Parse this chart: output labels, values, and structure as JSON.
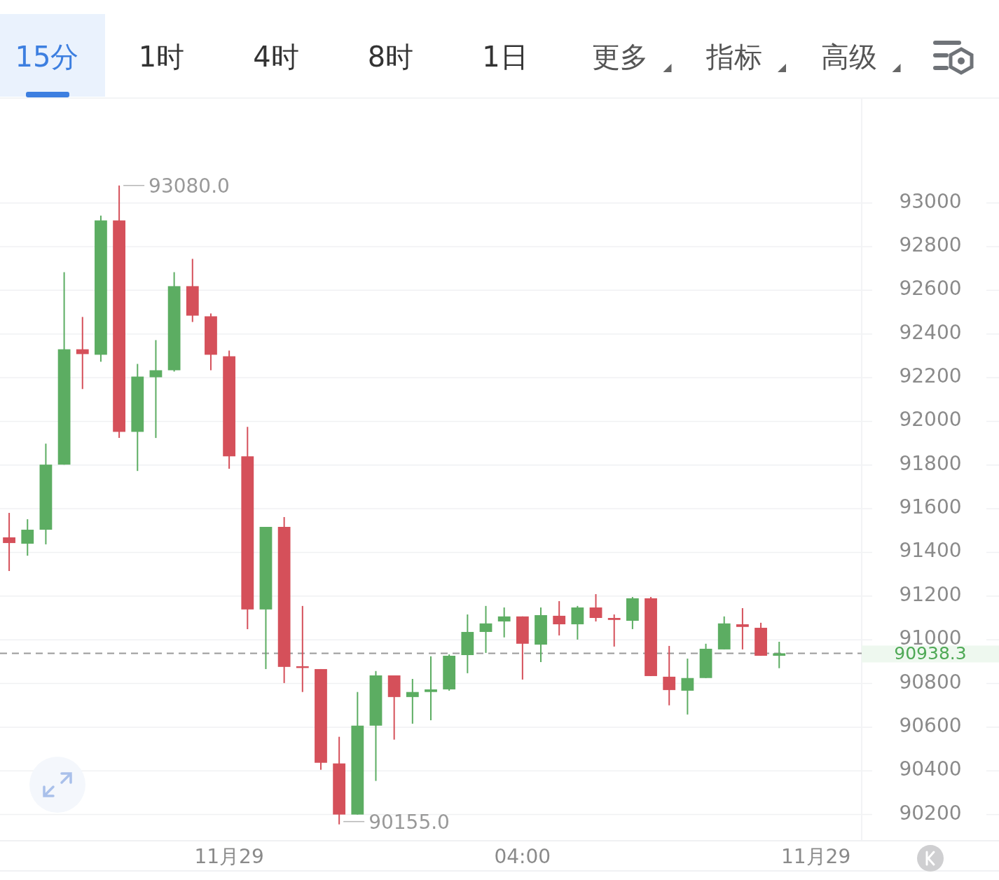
{
  "chart_data": {
    "type": "candlestick",
    "categories": [
      null,
      null,
      null,
      null,
      null,
      null,
      null,
      null,
      null,
      null,
      null,
      null,
      "11月29",
      null,
      null,
      null,
      null,
      null,
      null,
      null,
      null,
      null,
      null,
      null,
      null,
      null,
      null,
      null,
      "04:00",
      null,
      null,
      null,
      null,
      null,
      null,
      null,
      null,
      null,
      null,
      null,
      null,
      null,
      null,
      null,
      "11月29",
      null,
      null
    ],
    "ohlc": [
      [
        91469,
        91581,
        91315,
        91443
      ],
      [
        91440,
        91552,
        91385,
        91504
      ],
      [
        91504,
        91898,
        91437,
        91802
      ],
      [
        91802,
        92683,
        91802,
        92330
      ],
      [
        92330,
        92478,
        92148,
        92308
      ],
      [
        92305,
        92942,
        92273,
        92920
      ],
      [
        92920,
        93080,
        91924,
        91952
      ],
      [
        91952,
        92263,
        91773,
        92205
      ],
      [
        92202,
        92372,
        91924,
        92234
      ],
      [
        92234,
        92683,
        92228,
        92619
      ],
      [
        92619,
        92744,
        92455,
        92484
      ],
      [
        92481,
        92494,
        92234,
        92305
      ],
      [
        92298,
        92324,
        91783,
        91840
      ],
      [
        91840,
        91975,
        91049,
        91139
      ],
      [
        91139,
        91517,
        90866,
        91517
      ],
      [
        91517,
        91562,
        90802,
        90876
      ],
      [
        90879,
        91155,
        90761,
        90873
      ],
      [
        90866,
        90866,
        90405,
        90437
      ],
      [
        90434,
        90556,
        90155,
        90200
      ],
      [
        90200,
        90761,
        90200,
        90607
      ],
      [
        90607,
        90857,
        90354,
        90837
      ],
      [
        90837,
        90837,
        90543,
        90738
      ],
      [
        90738,
        90821,
        90616,
        90761
      ],
      [
        90761,
        90924,
        90632,
        90773
      ],
      [
        90773,
        90933,
        90767,
        90927
      ],
      [
        90930,
        91116,
        90847,
        91036
      ],
      [
        91036,
        91155,
        90940,
        91075
      ],
      [
        91084,
        91148,
        91011,
        91107
      ],
      [
        91107,
        91107,
        90818,
        90982
      ],
      [
        90978,
        91148,
        90898,
        91113
      ],
      [
        91110,
        91177,
        91020,
        91071
      ],
      [
        91071,
        91155,
        91001,
        91148
      ],
      [
        91148,
        91209,
        91084,
        91100
      ],
      [
        91100,
        91116,
        90969,
        91091
      ],
      [
        91087,
        91196,
        91049,
        91190
      ],
      [
        91190,
        91196,
        90834,
        90834
      ],
      [
        90831,
        90972,
        90700,
        90770
      ],
      [
        90767,
        90914,
        90658,
        90825
      ],
      [
        90825,
        90982,
        90825,
        90959
      ],
      [
        90956,
        91107,
        90956,
        91075
      ],
      [
        91071,
        91145,
        90956,
        91059
      ],
      [
        91055,
        91078,
        90927,
        90927
      ],
      [
        90927,
        90991,
        90870,
        90938.3
      ],
      null,
      null,
      null,
      null
    ],
    "colors": [
      "#d5505a",
      "#5cad62",
      "#5cad62",
      "#5cad62",
      "#d5505a",
      "#5cad62",
      "#d5505a",
      "#5cad62",
      "#5cad62",
      "#5cad62",
      "#d5505a",
      "#d5505a",
      "#d5505a",
      "#d5505a",
      "#5cad62",
      "#d5505a",
      "#d5505a",
      "#d5505a",
      "#d5505a",
      "#5cad62",
      "#5cad62",
      "#d5505a",
      "#5cad62",
      "#5cad62",
      "#5cad62",
      "#5cad62",
      "#5cad62",
      "#5cad62",
      "#d5505a",
      "#5cad62",
      "#d5505a",
      "#5cad62",
      "#d5505a",
      "#d5505a",
      "#5cad62",
      "#d5505a",
      "#d5505a",
      "#5cad62",
      "#5cad62",
      "#5cad62",
      "#d5505a",
      "#d5505a",
      "#5cad62",
      null,
      null,
      null,
      null
    ],
    "ylim": [
      90080,
      93480
    ],
    "yticks": [
      90200,
      90400,
      90600,
      90800,
      91000,
      91200,
      91400,
      91600,
      91800,
      92000,
      92200,
      92400,
      92600,
      92800,
      93000
    ],
    "grid": "y",
    "ref_lines": [
      {
        "axis": "y",
        "value": 90938.3,
        "label": "90938.3",
        "color": "#999999",
        "line_style": "dashed"
      }
    ],
    "annotations": [
      "15分",
      "1时",
      "4时",
      "8时",
      "1日",
      "更多",
      "指标",
      "高级",
      "93080.0",
      "90155.0"
    ]
  }
}
